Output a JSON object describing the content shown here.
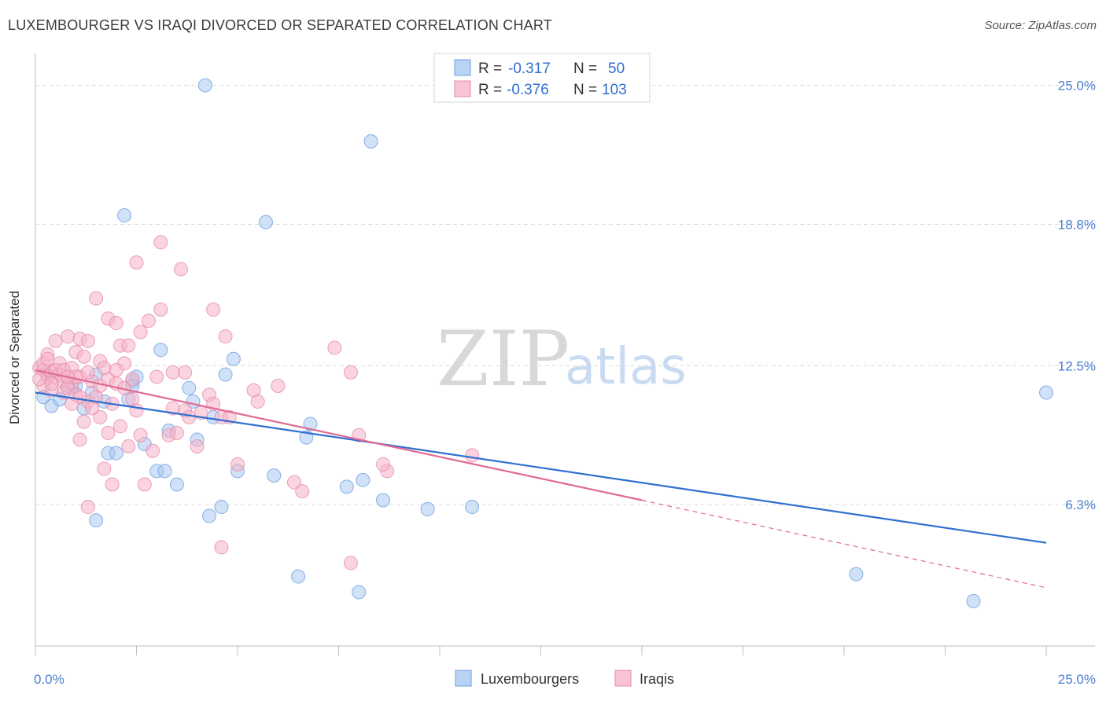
{
  "title": "LUXEMBOURGER VS IRAQI DIVORCED OR SEPARATED CORRELATION CHART",
  "source": "Source: ZipAtlas.com",
  "watermark": {
    "zip": "ZIP",
    "atlas": "atlas"
  },
  "legend_top": {
    "rows": [
      {
        "r_label": "R =",
        "r_value": "-0.317",
        "n_label": "N =",
        "n_value": "50"
      },
      {
        "r_label": "R =",
        "r_value": "-0.376",
        "n_label": "N =",
        "n_value": "103"
      }
    ]
  },
  "chart_data": {
    "type": "scatter",
    "title": "LUXEMBOURGER VS IRAQI DIVORCED OR SEPARATED CORRELATION CHART",
    "xlabel": "",
    "ylabel": "Divorced or Separated",
    "xlim": [
      0,
      25
    ],
    "ylim": [
      0,
      26
    ],
    "x_tick_labels": [
      "0.0%",
      "25.0%"
    ],
    "y_ticks": [
      6.3,
      12.5,
      18.8,
      25.0
    ],
    "y_tick_labels": [
      "6.3%",
      "12.5%",
      "18.8%",
      "25.0%"
    ],
    "grid": "horizontal dashed",
    "legend_position": "top-center and bottom-center",
    "colors": {
      "luxembourgers_fill": "#a9c9f2",
      "luxembourgers_line": "#2f6fd0",
      "iraqis_fill": "#f6b3c8",
      "iraqis_line": "#e06a92",
      "tick_text": "#4a7fd0",
      "grid": "#dcdcdc"
    },
    "series": [
      {
        "name": "Luxembourgers",
        "trend": {
          "x": [
            0,
            25
          ],
          "y": [
            11.3,
            4.6
          ]
        },
        "points": [
          [
            4.2,
            25.0
          ],
          [
            8.3,
            22.5
          ],
          [
            2.2,
            19.2
          ],
          [
            5.7,
            18.9
          ],
          [
            0.2,
            11.1
          ],
          [
            0.4,
            10.7
          ],
          [
            0.6,
            11.0
          ],
          [
            0.9,
            11.5
          ],
          [
            1.2,
            10.6
          ],
          [
            1.5,
            12.1
          ],
          [
            1.4,
            11.3
          ],
          [
            0.8,
            11.6
          ],
          [
            2.4,
            11.8
          ],
          [
            2.5,
            12.0
          ],
          [
            3.1,
            13.2
          ],
          [
            3.8,
            11.5
          ],
          [
            3.9,
            10.9
          ],
          [
            4.4,
            10.2
          ],
          [
            4.7,
            12.1
          ],
          [
            4.9,
            12.8
          ],
          [
            6.8,
            9.9
          ],
          [
            6.7,
            9.3
          ],
          [
            3.3,
            9.6
          ],
          [
            3.0,
            7.8
          ],
          [
            3.2,
            7.8
          ],
          [
            3.5,
            7.2
          ],
          [
            1.8,
            8.6
          ],
          [
            2.0,
            8.6
          ],
          [
            2.7,
            9.0
          ],
          [
            4.0,
            9.2
          ],
          [
            5.0,
            7.8
          ],
          [
            5.9,
            7.6
          ],
          [
            7.7,
            7.1
          ],
          [
            8.1,
            7.4
          ],
          [
            8.6,
            6.5
          ],
          [
            9.7,
            6.1
          ],
          [
            10.8,
            6.2
          ],
          [
            4.6,
            6.2
          ],
          [
            4.3,
            5.8
          ],
          [
            1.5,
            5.6
          ],
          [
            6.5,
            3.1
          ],
          [
            8.0,
            2.4
          ],
          [
            20.3,
            3.2
          ],
          [
            23.2,
            2.0
          ],
          [
            25.0,
            11.3
          ],
          [
            2.4,
            11.6
          ],
          [
            1.0,
            11.6
          ],
          [
            0.3,
            12.1
          ],
          [
            1.7,
            10.9
          ],
          [
            2.3,
            11.0
          ]
        ]
      },
      {
        "name": "Iraqis",
        "trend": {
          "x": [
            0,
            15
          ],
          "y": [
            12.3,
            6.5
          ]
        },
        "trend_extension": {
          "x": [
            15,
            25
          ],
          "y": [
            6.5,
            2.6
          ]
        },
        "points": [
          [
            3.1,
            18.0
          ],
          [
            2.5,
            17.1
          ],
          [
            3.6,
            16.8
          ],
          [
            1.5,
            15.5
          ],
          [
            3.1,
            15.0
          ],
          [
            4.4,
            15.0
          ],
          [
            1.8,
            14.6
          ],
          [
            2.0,
            14.4
          ],
          [
            2.8,
            14.5
          ],
          [
            2.6,
            14.0
          ],
          [
            4.7,
            13.8
          ],
          [
            0.8,
            13.8
          ],
          [
            1.1,
            13.7
          ],
          [
            1.3,
            13.6
          ],
          [
            2.1,
            13.4
          ],
          [
            2.3,
            13.4
          ],
          [
            7.4,
            13.3
          ],
          [
            0.3,
            13.0
          ],
          [
            0.5,
            13.6
          ],
          [
            1.0,
            13.1
          ],
          [
            1.2,
            12.9
          ],
          [
            1.6,
            12.7
          ],
          [
            2.2,
            12.6
          ],
          [
            3.4,
            12.2
          ],
          [
            3.7,
            12.2
          ],
          [
            7.8,
            12.2
          ],
          [
            0.1,
            12.4
          ],
          [
            0.2,
            12.3
          ],
          [
            0.3,
            12.0
          ],
          [
            0.4,
            12.2
          ],
          [
            0.5,
            12.0
          ],
          [
            0.6,
            12.1
          ],
          [
            0.7,
            11.8
          ],
          [
            0.9,
            11.7
          ],
          [
            1.1,
            12.0
          ],
          [
            1.4,
            11.8
          ],
          [
            1.6,
            11.6
          ],
          [
            1.8,
            11.9
          ],
          [
            2.0,
            11.7
          ],
          [
            2.2,
            11.5
          ],
          [
            0.2,
            11.6
          ],
          [
            0.4,
            11.4
          ],
          [
            0.7,
            11.3
          ],
          [
            0.8,
            11.5
          ],
          [
            1.0,
            11.2
          ],
          [
            1.3,
            10.9
          ],
          [
            1.5,
            11.1
          ],
          [
            1.9,
            10.8
          ],
          [
            2.4,
            11.0
          ],
          [
            2.5,
            10.5
          ],
          [
            3.4,
            10.6
          ],
          [
            3.7,
            10.5
          ],
          [
            4.3,
            11.2
          ],
          [
            4.4,
            10.8
          ],
          [
            5.4,
            11.4
          ],
          [
            5.5,
            10.9
          ],
          [
            6.0,
            11.6
          ],
          [
            1.2,
            10.0
          ],
          [
            1.6,
            10.2
          ],
          [
            1.8,
            9.5
          ],
          [
            2.1,
            9.8
          ],
          [
            2.6,
            9.4
          ],
          [
            3.3,
            9.4
          ],
          [
            3.5,
            9.5
          ],
          [
            3.8,
            10.2
          ],
          [
            4.1,
            10.4
          ],
          [
            4.6,
            10.2
          ],
          [
            4.8,
            10.2
          ],
          [
            8.0,
            9.4
          ],
          [
            1.1,
            9.2
          ],
          [
            2.3,
            8.9
          ],
          [
            2.9,
            8.7
          ],
          [
            4.0,
            8.9
          ],
          [
            1.7,
            7.9
          ],
          [
            1.9,
            7.2
          ],
          [
            2.7,
            7.2
          ],
          [
            5.0,
            8.1
          ],
          [
            6.4,
            7.3
          ],
          [
            6.6,
            6.9
          ],
          [
            8.7,
            7.8
          ],
          [
            8.6,
            8.1
          ],
          [
            10.8,
            8.5
          ],
          [
            1.3,
            6.2
          ],
          [
            4.6,
            4.4
          ],
          [
            7.8,
            3.7
          ],
          [
            0.1,
            11.9
          ],
          [
            0.2,
            12.6
          ],
          [
            0.6,
            12.6
          ],
          [
            0.9,
            12.4
          ],
          [
            1.3,
            12.2
          ],
          [
            1.7,
            12.4
          ],
          [
            2.0,
            12.3
          ],
          [
            0.3,
            12.8
          ],
          [
            0.5,
            12.3
          ],
          [
            0.7,
            12.3
          ],
          [
            1.0,
            12.0
          ],
          [
            2.4,
            11.9
          ],
          [
            1.1,
            11.1
          ],
          [
            0.4,
            11.7
          ],
          [
            0.8,
            12.0
          ],
          [
            3.0,
            12.0
          ],
          [
            0.9,
            10.8
          ],
          [
            1.4,
            10.6
          ]
        ]
      }
    ]
  },
  "legend_bottom": {
    "items": [
      {
        "label": "Luxembourgers"
      },
      {
        "label": "Iraqis"
      }
    ]
  }
}
